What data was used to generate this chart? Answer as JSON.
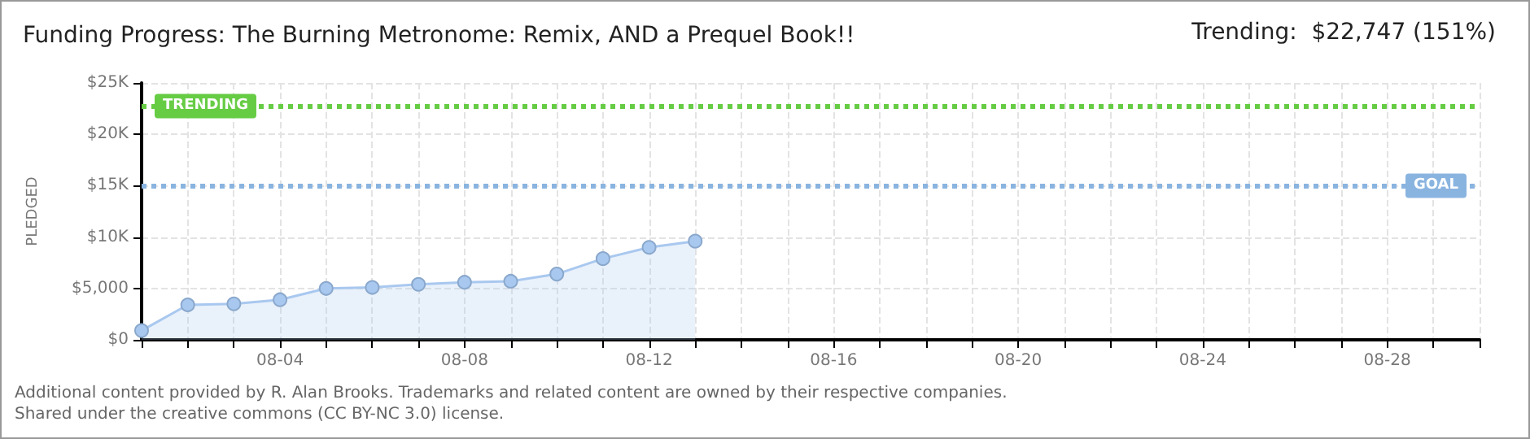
{
  "chart_data": {
    "type": "area",
    "title": "Funding Progress: The Burning Metronome: Remix, AND a Prequel Book!!",
    "ylabel": "PLEDGED",
    "annotations": [
      "Trending:  $22,747 (151%)",
      "Additional content provided by R. Alan Brooks. Trademarks and related content are owned by their respective companies.",
      "Shared under the creative commons (CC BY-NC 3.0) license."
    ],
    "x": [
      "--08-01",
      "--08-02",
      "--08-03",
      "--08-04",
      "--08-05",
      "--08-06",
      "--08-07",
      "--08-08",
      "--08-09",
      "--08-10",
      "--08-11",
      "--08-12",
      "--08-13"
    ],
    "series": [
      {
        "color": "#a9c8ef",
        "values": [
          900,
          3400,
          3500,
          3900,
          5000,
          5100,
          5400,
          5600,
          5700,
          6400,
          7900,
          9000,
          9600
        ]
      }
    ],
    "xlim": [
      "--08-01",
      "--08-30"
    ],
    "xticks": [
      {
        "value": "--08-01",
        "label": null
      },
      {
        "value": "--08-02",
        "label": null
      },
      {
        "value": "--08-03",
        "label": null
      },
      {
        "value": "--08-04",
        "label": "08-04"
      },
      {
        "value": "--08-05",
        "label": null
      },
      {
        "value": "--08-06",
        "label": null
      },
      {
        "value": "--08-07",
        "label": null
      },
      {
        "value": "--08-08",
        "label": "08-08"
      },
      {
        "value": "--08-09",
        "label": null
      },
      {
        "value": "--08-10",
        "label": null
      },
      {
        "value": "--08-11",
        "label": null
      },
      {
        "value": "--08-12",
        "label": "08-12"
      },
      {
        "value": "--08-13",
        "label": null
      },
      {
        "value": "--08-14",
        "label": null
      },
      {
        "value": "--08-15",
        "label": null
      },
      {
        "value": "--08-16",
        "label": "08-16"
      },
      {
        "value": "--08-17",
        "label": null
      },
      {
        "value": "--08-18",
        "label": null
      },
      {
        "value": "--08-19",
        "label": null
      },
      {
        "value": "--08-20",
        "label": "08-20"
      },
      {
        "value": "--08-21",
        "label": null
      },
      {
        "value": "--08-22",
        "label": null
      },
      {
        "value": "--08-23",
        "label": null
      },
      {
        "value": "--08-24",
        "label": "08-24"
      },
      {
        "value": "--08-25",
        "label": null
      },
      {
        "value": "--08-26",
        "label": null
      },
      {
        "value": "--08-27",
        "label": null
      },
      {
        "value": "--08-28",
        "label": "08-28"
      },
      {
        "value": "--08-29",
        "label": null
      },
      {
        "value": "--08-30",
        "label": null
      }
    ],
    "ylim": [
      0,
      25000
    ],
    "yticks": [
      {
        "value": 0,
        "label": "$0"
      },
      {
        "value": 5000,
        "label": "$5,000"
      },
      {
        "value": 10000,
        "label": "$10K"
      },
      {
        "value": 15000,
        "label": "$15K"
      },
      {
        "value": 20000,
        "label": "$20K"
      },
      {
        "value": 25000,
        "label": "$25K"
      }
    ],
    "ref_lines": [
      {
        "axis": "y",
        "value": 22747,
        "label": "TRENDING",
        "color": "#66cc44",
        "line_style": "dotted"
      },
      {
        "axis": "y",
        "value": 15000,
        "label": "GOAL",
        "color": "#8ab4e0",
        "line_style": "dotted"
      }
    ],
    "grid": true,
    "marker": "circle",
    "line_style": "solid"
  }
}
